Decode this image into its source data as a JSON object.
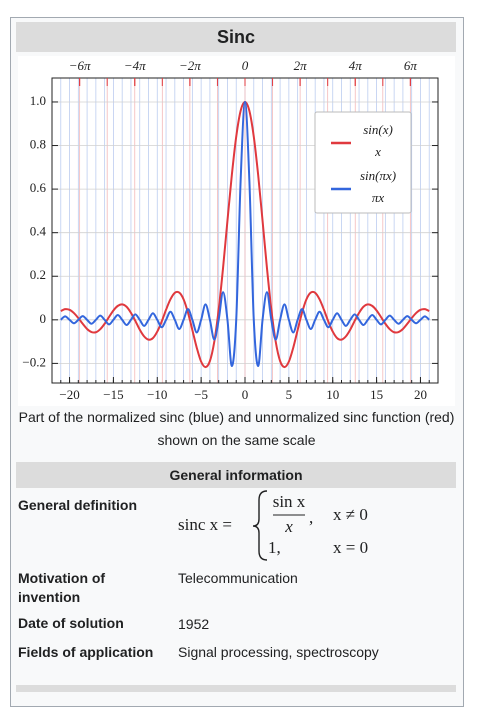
{
  "infobox": {
    "title": "Sinc",
    "caption": "Part of the normalized sinc (blue) and unnormalized sinc function (red) shown on the same scale",
    "section": "General information",
    "rows": [
      {
        "label": "General definition",
        "formula": {
          "lhs": "sinc x =",
          "cases": [
            {
              "numerator": "sin x",
              "denominator": "x",
              "separator": ",",
              "condition": "x ≠ 0"
            },
            {
              "value": "1,",
              "condition": "x = 0"
            }
          ]
        }
      },
      {
        "label": "Motivation of invention",
        "value": "Telecommunication"
      },
      {
        "label": "Date of solution",
        "value": "1952"
      },
      {
        "label": "Fields of application",
        "value": "Signal processing, spectroscopy"
      }
    ]
  },
  "chart_data": {
    "type": "line",
    "x": [
      -21,
      -20.5,
      -20,
      -19.5,
      -19,
      -18.5,
      -18,
      -17.5,
      -17,
      -16.5,
      -16,
      -15.5,
      -15,
      -14.5,
      -14,
      -13.5,
      -13,
      -12.5,
      -12,
      -11.5,
      -11,
      -10.5,
      -10,
      -9.5,
      -9,
      -8.5,
      -8,
      -7.5,
      -7,
      -6.5,
      -6,
      -5.5,
      -5,
      -4.5,
      -4,
      -3.5,
      -3,
      -2.5,
      -2,
      -1.5,
      -1,
      -0.5,
      0,
      0.5,
      1,
      1.5,
      2,
      2.5,
      3,
      3.5,
      4,
      4.5,
      5,
      5.5,
      6,
      6.5,
      7,
      7.5,
      8,
      8.5,
      9,
      9.5,
      10,
      10.5,
      11,
      11.5,
      12,
      12.5,
      13,
      13.5,
      14,
      14.5,
      15,
      15.5,
      16,
      16.5,
      17,
      17.5,
      18,
      18.5,
      19,
      19.5,
      20,
      20.5,
      21
    ],
    "series": [
      {
        "name": {
          "numerator": "sin(x)",
          "denominator": "x"
        },
        "color": "#e0393e",
        "values": [
          0.04,
          0.049,
          0.046,
          0.031,
          0.008,
          -0.018,
          -0.042,
          -0.056,
          -0.057,
          -0.043,
          -0.018,
          0.013,
          0.043,
          0.064,
          0.071,
          0.06,
          0.032,
          -0.005,
          -0.045,
          -0.076,
          -0.091,
          -0.084,
          -0.054,
          -0.008,
          0.046,
          0.094,
          0.124,
          0.125,
          0.094,
          0.033,
          -0.047,
          -0.128,
          -0.192,
          -0.217,
          -0.189,
          -0.1,
          0.047,
          0.239,
          0.455,
          0.665,
          0.841,
          0.959,
          1,
          0.959,
          0.841,
          0.665,
          0.455,
          0.239,
          0.047,
          -0.1,
          -0.189,
          -0.217,
          -0.192,
          -0.128,
          -0.047,
          0.033,
          0.094,
          0.125,
          0.124,
          0.094,
          0.046,
          -0.008,
          -0.054,
          -0.084,
          -0.091,
          -0.076,
          -0.045,
          -0.005,
          0.032,
          0.06,
          0.071,
          0.064,
          0.043,
          0.013,
          -0.018,
          -0.043,
          -0.057,
          -0.056,
          -0.042,
          -0.018,
          0.008,
          0.031,
          0.046,
          0.049,
          0.04
        ]
      },
      {
        "name": {
          "numerator": "sin(πx)",
          "denominator": "πx"
        },
        "color": "#3366dd",
        "values": [
          0,
          0.016,
          0,
          -0.016,
          0,
          0.017,
          0,
          -0.018,
          0,
          0.019,
          0,
          -0.021,
          0,
          0.022,
          0,
          -0.024,
          0,
          0.025,
          0,
          -0.028,
          0,
          0.03,
          0,
          -0.034,
          0,
          0.037,
          0,
          -0.042,
          0,
          0.049,
          0,
          -0.058,
          0,
          0.071,
          0,
          -0.091,
          0,
          0.127,
          0,
          -0.212,
          0,
          0.637,
          1,
          0.637,
          0,
          -0.212,
          0,
          0.127,
          0,
          -0.091,
          0,
          0.071,
          0,
          -0.058,
          0,
          0.049,
          0,
          -0.042,
          0,
          0.037,
          0,
          -0.034,
          0,
          0.03,
          0,
          -0.028,
          0,
          0.025,
          0,
          -0.024,
          0,
          0.022,
          0,
          -0.021,
          0,
          0.019,
          0,
          -0.018,
          0,
          0.017,
          0,
          -0.016,
          0,
          0.016,
          0
        ]
      }
    ],
    "xlim": [
      -22,
      22
    ],
    "ylim": [
      -0.29,
      1.11
    ],
    "xticks": [
      {
        "value": -20,
        "label": "−20"
      },
      {
        "value": -15,
        "label": "−15"
      },
      {
        "value": -10,
        "label": "−10"
      },
      {
        "value": -5,
        "label": "−5"
      },
      0,
      5,
      10,
      15,
      20
    ],
    "xminor": [
      -21,
      -20,
      -19,
      -18,
      -17,
      -16,
      -15,
      -14,
      -13,
      -12,
      -11,
      -10,
      -9,
      -8,
      -7,
      -6,
      -5,
      -4,
      -3,
      -2,
      -1,
      0,
      1,
      2,
      3,
      4,
      5,
      6,
      7,
      8,
      9,
      10,
      11,
      12,
      13,
      14,
      15,
      16,
      17,
      18,
      19,
      20,
      21
    ],
    "x2ticks": [
      {
        "value": -18.85,
        "label": "−6π"
      },
      {
        "value": -12.566,
        "label": "−4π"
      },
      {
        "value": -6.283,
        "label": "−2π"
      },
      0,
      {
        "value": 6.283,
        "label": "2π"
      },
      {
        "value": 12.566,
        "label": "4π"
      },
      {
        "value": 18.85,
        "label": "6π"
      }
    ],
    "x2minor": [
      -18.85,
      -15.708,
      -12.566,
      -9.425,
      -6.283,
      -3.142,
      0,
      3.142,
      6.283,
      9.425,
      12.566,
      15.708,
      18.85
    ],
    "yticks": [
      {
        "value": 1,
        "label": "1.0"
      },
      0.8,
      0.6,
      0.4,
      0.2,
      0,
      {
        "value": -0.2,
        "label": "−0.2"
      }
    ],
    "grid": true,
    "grid_color": "#d0d0d0",
    "x_grid_color": "#bccdf0",
    "x2_grid_color": "#f3b9b9",
    "legend": "upper right"
  }
}
